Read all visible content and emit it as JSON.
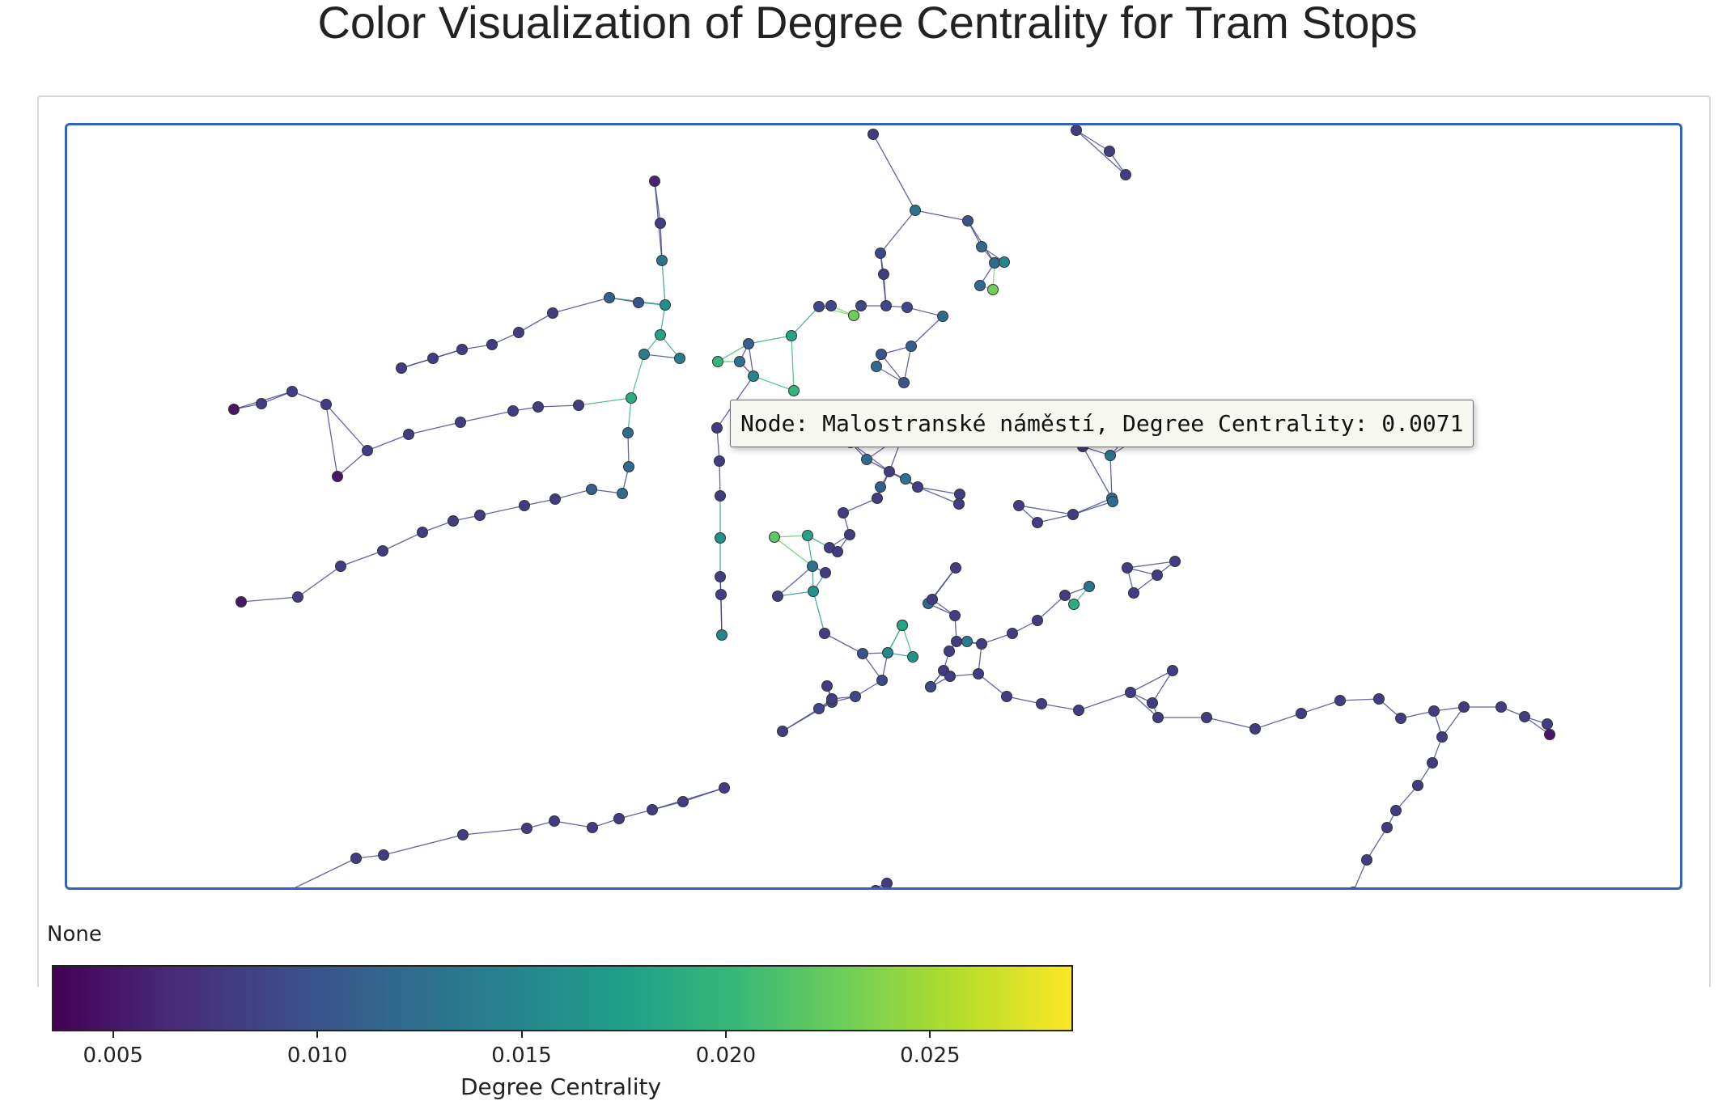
{
  "title": "Color Visualization of Degree Centrality for Tram Stops",
  "tooltip": "Node: Malostranské náměstí, Degree Centrality: 0.0071",
  "colorbar": {
    "top_label": "None",
    "label": "Degree Centrality",
    "range": [
      0.0035,
      0.0285
    ],
    "ticks": [
      0.005,
      0.01,
      0.015,
      0.02,
      0.025
    ],
    "tick_labels": [
      "0.005",
      "0.010",
      "0.015",
      "0.020",
      "0.025"
    ],
    "colormap": "viridis",
    "stops": [
      "#440154",
      "#482878",
      "#3e4989",
      "#31688e",
      "#26828e",
      "#1f9e89",
      "#35b779",
      "#6ece58",
      "#b5de2b",
      "#fde725"
    ]
  },
  "colors": {
    "frame": "#2f63c0",
    "edge": "#3b3f8a",
    "node_outline": "#333333"
  },
  "chart_data": {
    "type": "network",
    "title": "Color Visualization of Degree Centrality for Tram Stops",
    "colorbar_label": "Degree Centrality",
    "value_range": [
      0.0035,
      0.0285
    ],
    "hovered_node": {
      "name": "Malostranské náměstí",
      "degree_centrality": 0.0071
    },
    "nodes": [
      [
        1076,
        163,
        0.008
      ],
      [
        1327,
        158,
        0.008
      ],
      [
        1368,
        184,
        0.008
      ],
      [
        1388,
        213,
        0.008
      ],
      [
        806,
        221,
        0.006
      ],
      [
        1128,
        257,
        0.013
      ],
      [
        1193,
        270,
        0.01
      ],
      [
        1210,
        302,
        0.012
      ],
      [
        1226,
        322,
        0.012
      ],
      [
        1224,
        355,
        0.023
      ],
      [
        1238,
        321,
        0.015
      ],
      [
        1208,
        350,
        0.012
      ],
      [
        1162,
        388,
        0.012
      ],
      [
        1085,
        310,
        0.009
      ],
      [
        1089,
        336,
        0.008
      ],
      [
        1092,
        375,
        0.009
      ],
      [
        1118,
        377,
        0.009
      ],
      [
        1061,
        375,
        0.009
      ],
      [
        1024,
        375,
        0.009
      ],
      [
        1009,
        376,
        0.009
      ],
      [
        813,
        273,
        0.008
      ],
      [
        815,
        319,
        0.013
      ],
      [
        819,
        374,
        0.016
      ],
      [
        884,
        444,
        0.02
      ],
      [
        786,
        371,
        0.01
      ],
      [
        750,
        365,
        0.011
      ],
      [
        813,
        411,
        0.018
      ],
      [
        793,
        435,
        0.014
      ],
      [
        837,
        440,
        0.014
      ],
      [
        922,
        422,
        0.011
      ],
      [
        928,
        462,
        0.015
      ],
      [
        911,
        444,
        0.013
      ],
      [
        975,
        412,
        0.018
      ],
      [
        978,
        480,
        0.02
      ],
      [
        1052,
        387,
        0.023
      ],
      [
        1086,
        435,
        0.01
      ],
      [
        1123,
        425,
        0.011
      ],
      [
        1080,
        450,
        0.012
      ],
      [
        1114,
        470,
        0.01
      ],
      [
        680,
        384,
        0.008
      ],
      [
        638,
        408,
        0.008
      ],
      [
        605,
        423,
        0.008
      ],
      [
        568,
        429,
        0.008
      ],
      [
        532,
        440,
        0.008
      ],
      [
        493,
        452,
        0.008
      ],
      [
        400,
        497,
        0.008
      ],
      [
        358,
        481,
        0.008
      ],
      [
        320,
        496,
        0.008
      ],
      [
        286,
        503,
        0.005
      ],
      [
        777,
        489,
        0.019
      ],
      [
        712,
        498,
        0.008
      ],
      [
        662,
        500,
        0.008
      ],
      [
        631,
        505,
        0.008
      ],
      [
        566,
        519,
        0.008
      ],
      [
        502,
        534,
        0.008
      ],
      [
        451,
        554,
        0.008
      ],
      [
        414,
        586,
        0.005
      ],
      [
        773,
        532,
        0.012
      ],
      [
        774,
        574,
        0.012
      ],
      [
        766,
        607,
        0.012
      ],
      [
        728,
        602,
        0.011
      ],
      [
        683,
        614,
        0.008
      ],
      [
        645,
        622,
        0.008
      ],
      [
        590,
        634,
        0.008
      ],
      [
        557,
        641,
        0.008
      ],
      [
        519,
        655,
        0.008
      ],
      [
        470,
        678,
        0.008
      ],
      [
        418,
        697,
        0.008
      ],
      [
        365,
        735,
        0.008
      ],
      [
        295,
        741,
        0.005
      ],
      [
        883,
        526,
        0.008
      ],
      [
        886,
        567,
        0.008
      ],
      [
        887,
        610,
        0.008
      ],
      [
        887,
        662,
        0.016
      ],
      [
        954,
        661,
        0.022
      ],
      [
        995,
        659,
        0.018
      ],
      [
        1001,
        697,
        0.013
      ],
      [
        1022,
        674,
        0.008
      ],
      [
        1039,
        631,
        0.008
      ],
      [
        1085,
        599,
        0.011
      ],
      [
        1068,
        565,
        0.012
      ],
      [
        1116,
        589,
        0.013
      ],
      [
        1113,
        534,
        0.012
      ],
      [
        887,
        710,
        0.008
      ],
      [
        888,
        732,
        0.008
      ],
      [
        889,
        782,
        0.015
      ],
      [
        958,
        734,
        0.008
      ],
      [
        1002,
        728,
        0.016
      ],
      [
        1017,
        705,
        0.008
      ],
      [
        1032,
        679,
        0.008
      ],
      [
        1047,
        658,
        0.008
      ],
      [
        1096,
        580,
        0.008
      ],
      [
        1048,
        544,
        0.008
      ],
      [
        1081,
        613,
        0.008
      ],
      [
        1131,
        599,
        0.008
      ],
      [
        1183,
        608,
        0.008
      ],
      [
        1182,
        620,
        0.008
      ],
      [
        1256,
        622,
        0.008
      ],
      [
        1279,
        643,
        0.008
      ],
      [
        1323,
        633,
        0.008
      ],
      [
        1371,
        613,
        0.013
      ],
      [
        1369,
        560,
        0.013
      ],
      [
        1335,
        549,
        0.008
      ],
      [
        1408,
        517,
        0.008
      ],
      [
        1460,
        504,
        0.008
      ],
      [
        1372,
        617,
        0.012
      ],
      [
        1390,
        699,
        0.008
      ],
      [
        1449,
        691,
        0.008
      ],
      [
        1427,
        708,
        0.008
      ],
      [
        1398,
        730,
        0.008
      ],
      [
        1324,
        744,
        0.019
      ],
      [
        1343,
        722,
        0.013
      ],
      [
        1313,
        733,
        0.008
      ],
      [
        1279,
        764,
        0.008
      ],
      [
        1248,
        780,
        0.008
      ],
      [
        1210,
        793,
        0.008
      ],
      [
        1170,
        802,
        0.008
      ],
      [
        1147,
        846,
        0.009
      ],
      [
        1087,
        838,
        0.009
      ],
      [
        1054,
        858,
        0.009
      ],
      [
        1025,
        865,
        0.009
      ],
      [
        1009,
        873,
        0.009
      ],
      [
        964,
        901,
        0.008
      ],
      [
        892,
        971,
        0.008
      ],
      [
        841,
        988,
        0.008
      ],
      [
        803,
        998,
        0.008
      ],
      [
        762,
        1009,
        0.008
      ],
      [
        729,
        1020,
        0.008
      ],
      [
        682,
        1012,
        0.008
      ],
      [
        648,
        1021,
        0.008
      ],
      [
        569,
        1029,
        0.008
      ],
      [
        471,
        1054,
        0.008
      ],
      [
        437,
        1058,
        0.008
      ],
      [
        348,
        1101,
        0.008
      ],
      [
        308,
        1138,
        0.008
      ],
      [
        279,
        1129,
        0.008
      ],
      [
        245,
        1114,
        0.005
      ],
      [
        1112,
        770,
        0.02
      ],
      [
        1144,
        743,
        0.012
      ],
      [
        1149,
        738,
        0.008
      ],
      [
        1178,
        699,
        0.008
      ],
      [
        1177,
        758,
        0.008
      ],
      [
        1192,
        790,
        0.014
      ],
      [
        1179,
        790,
        0.008
      ],
      [
        1163,
        826,
        0.008
      ],
      [
        1147,
        846,
        0.009
      ],
      [
        1125,
        809,
        0.016
      ],
      [
        1094,
        804,
        0.015
      ],
      [
        1063,
        805,
        0.01
      ],
      [
        1016,
        780,
        0.008
      ],
      [
        1019,
        845,
        0.008
      ],
      [
        1025,
        861,
        0.008
      ],
      [
        1112,
        770,
        0.018
      ],
      [
        1171,
        833,
        0.008
      ],
      [
        1206,
        830,
        0.008
      ],
      [
        1241,
        858,
        0.008
      ],
      [
        1284,
        867,
        0.008
      ],
      [
        1330,
        875,
        0.008
      ],
      [
        1394,
        853,
        0.008
      ],
      [
        1446,
        826,
        0.008
      ],
      [
        1421,
        866,
        0.008
      ],
      [
        1428,
        884,
        0.008
      ],
      [
        1488,
        884,
        0.008
      ],
      [
        1548,
        898,
        0.008
      ],
      [
        1605,
        879,
        0.008
      ],
      [
        1653,
        863,
        0.008
      ],
      [
        1701,
        861,
        0.008
      ],
      [
        1728,
        885,
        0.008
      ],
      [
        1769,
        876,
        0.008
      ],
      [
        1806,
        871,
        0.008
      ],
      [
        1852,
        871,
        0.008
      ],
      [
        1881,
        883,
        0.008
      ],
      [
        1909,
        892,
        0.008
      ],
      [
        1912,
        905,
        0.005
      ],
      [
        1779,
        908,
        0.008
      ],
      [
        1767,
        940,
        0.008
      ],
      [
        1749,
        968,
        0.008
      ],
      [
        1722,
        999,
        0.008
      ],
      [
        1711,
        1020,
        0.008
      ],
      [
        1686,
        1060,
        0.008
      ],
      [
        1669,
        1100,
        0.008
      ],
      [
        1667,
        1118,
        0.008
      ],
      [
        1645,
        1132,
        0.008
      ],
      [
        1627,
        1142,
        0.008
      ],
      [
        1601,
        1149,
        0.008
      ],
      [
        1564,
        1142,
        0.008
      ],
      [
        1513,
        1158,
        0.008
      ],
      [
        1464,
        1151,
        0.005
      ],
      [
        1432,
        1134,
        0.008
      ],
      [
        1384,
        1163,
        0.008
      ],
      [
        1368,
        1226,
        0.008
      ],
      [
        1350,
        1228,
        0.008
      ],
      [
        1326,
        1213,
        0.008
      ],
      [
        1300,
        1204,
        0.008
      ],
      [
        1291,
        1191,
        0.008
      ],
      [
        1278,
        1165,
        0.008
      ],
      [
        1240,
        1155,
        0.008
      ],
      [
        1205,
        1146,
        0.008
      ],
      [
        1167,
        1135,
        0.008
      ],
      [
        1158,
        1126,
        0.01
      ],
      [
        1093,
        1089,
        0.008
      ],
      [
        1079,
        1098,
        0.008
      ],
      [
        1051,
        1105,
        0.008
      ],
      [
        1026,
        1116,
        0.008
      ],
      [
        1007,
        1126,
        0.008
      ],
      [
        986,
        1129,
        0.008
      ],
      [
        1000,
        1150,
        0.008
      ],
      [
        1013,
        1183,
        0.008
      ],
      [
        1030,
        1194,
        0.008
      ],
      [
        1015,
        1228,
        0.008
      ],
      [
        993,
        1244,
        0.008
      ],
      [
        983,
        1269,
        0.008
      ],
      [
        1069,
        1263,
        0.008
      ],
      [
        1097,
        1260,
        0.008
      ],
      [
        1124,
        1264,
        0.008
      ],
      [
        1143,
        1262,
        0.008
      ],
      [
        1128,
        1252,
        0.012
      ],
      [
        1152,
        1253,
        0.019
      ],
      [
        1177,
        1247,
        0.008
      ],
      [
        1202,
        1229,
        0.008
      ],
      [
        1228,
        1212,
        0.012
      ],
      [
        1262,
        1205,
        0.008
      ],
      [
        1292,
        1222,
        0.012
      ],
      [
        1343,
        1206,
        0.008
      ],
      [
        1376,
        1209,
        0.008
      ],
      [
        1414,
        1206,
        0.012
      ],
      [
        1433,
        1198,
        0.008
      ],
      [
        1480,
        1205,
        0.008
      ],
      [
        1518,
        1220,
        0.012
      ],
      [
        1562,
        1238,
        0.008
      ],
      [
        1613,
        1266,
        0.008
      ],
      [
        1643,
        1292,
        0.008
      ],
      [
        1709,
        1276,
        0.008
      ],
      [
        1780,
        1260,
        0.005
      ],
      [
        1157,
        1269,
        0.012
      ],
      [
        1163,
        1287,
        0.008
      ],
      [
        1155,
        1299,
        0.008
      ],
      [
        1146,
        1317,
        0.008
      ]
    ]
  }
}
